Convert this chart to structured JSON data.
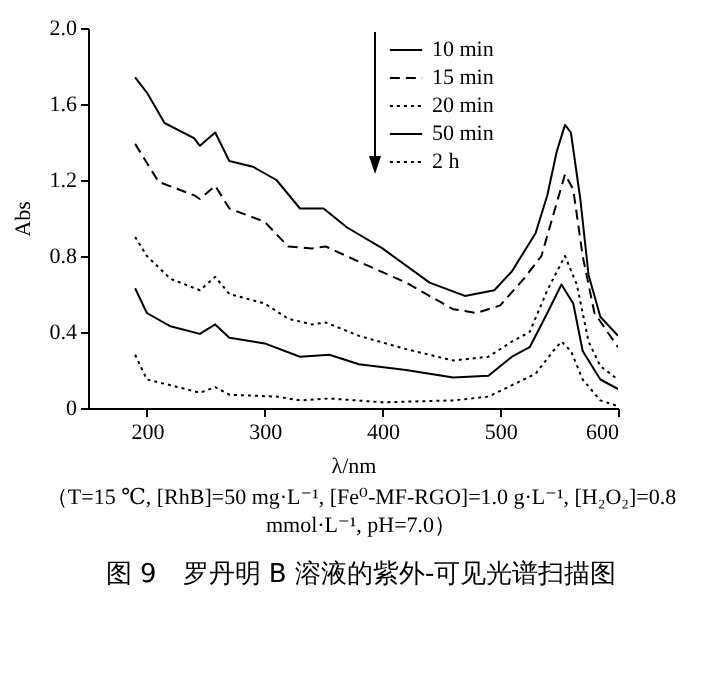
{
  "chart_data": {
    "type": "line",
    "title": "图 9　罗丹明 B 溶液的紫外-可见光谱扫描图",
    "xlabel": "λ/nm",
    "ylabel": "Abs",
    "annotations": [
      "（T=15 ℃, [RhB]=50 mg·L⁻¹, [Fe⁰-MF-RGO]=1.0 g·L⁻¹, [H₂O₂]=0.8 mmol·L⁻¹, pH=7.0）"
    ],
    "xlim": [
      150,
      600
    ],
    "xticks": [
      200,
      300,
      400,
      500,
      600
    ],
    "ylim": [
      0,
      2.0
    ],
    "yticks": [
      {
        "value": 0,
        "label": "0"
      },
      0.4,
      0.8,
      1.2,
      1.6,
      {
        "value": 2.0,
        "label": "2.0"
      }
    ],
    "grid": false,
    "legend": "top right",
    "series": [
      {
        "name": "10 min",
        "color": "#000000",
        "line_style": "solid",
        "x": [
          190,
          200,
          215,
          240,
          245,
          258,
          270,
          290,
          310,
          330,
          350,
          370,
          400,
          440,
          470,
          495,
          510,
          520,
          530,
          540,
          548,
          555,
          560,
          568,
          575,
          585,
          600
        ],
        "values": [
          1.74,
          1.66,
          1.5,
          1.42,
          1.38,
          1.45,
          1.3,
          1.27,
          1.2,
          1.05,
          1.05,
          0.95,
          0.84,
          0.66,
          0.59,
          0.62,
          0.72,
          0.82,
          0.92,
          1.12,
          1.35,
          1.49,
          1.45,
          1.1,
          0.7,
          0.48,
          0.38
        ]
      },
      {
        "name": "15 min",
        "color": "#000000",
        "line_style": "dashed",
        "x": [
          190,
          210,
          240,
          245,
          258,
          270,
          300,
          320,
          340,
          352,
          380,
          420,
          460,
          480,
          500,
          520,
          535,
          548,
          555,
          562,
          570,
          580,
          600
        ],
        "values": [
          1.39,
          1.19,
          1.12,
          1.1,
          1.17,
          1.05,
          0.98,
          0.85,
          0.84,
          0.85,
          0.77,
          0.66,
          0.52,
          0.5,
          0.54,
          0.68,
          0.8,
          1.08,
          1.23,
          1.15,
          0.8,
          0.5,
          0.32
        ]
      },
      {
        "name": "20 min",
        "color": "#000000",
        "line_style": "dotted",
        "x": [
          190,
          200,
          220,
          245,
          258,
          270,
          300,
          320,
          340,
          352,
          380,
          420,
          460,
          490,
          510,
          525,
          540,
          555,
          565,
          575,
          585,
          600
        ],
        "values": [
          0.9,
          0.8,
          0.68,
          0.62,
          0.69,
          0.6,
          0.55,
          0.47,
          0.44,
          0.45,
          0.38,
          0.31,
          0.25,
          0.27,
          0.35,
          0.4,
          0.62,
          0.8,
          0.65,
          0.35,
          0.22,
          0.15
        ]
      },
      {
        "name": "50 min",
        "color": "#000000",
        "line_style": "solid",
        "x": [
          190,
          200,
          220,
          245,
          258,
          270,
          300,
          330,
          355,
          380,
          420,
          460,
          490,
          510,
          525,
          540,
          552,
          562,
          570,
          585,
          600
        ],
        "values": [
          0.63,
          0.5,
          0.43,
          0.39,
          0.44,
          0.37,
          0.34,
          0.27,
          0.28,
          0.23,
          0.2,
          0.16,
          0.17,
          0.27,
          0.32,
          0.5,
          0.65,
          0.55,
          0.3,
          0.15,
          0.1
        ]
      },
      {
        "name": "2 h",
        "color": "#000000",
        "line_style": "dotted",
        "x": [
          190,
          200,
          220,
          245,
          258,
          270,
          310,
          330,
          355,
          400,
          460,
          490,
          510,
          530,
          545,
          552,
          560,
          570,
          585,
          600
        ],
        "values": [
          0.28,
          0.15,
          0.12,
          0.08,
          0.11,
          0.07,
          0.06,
          0.04,
          0.05,
          0.03,
          0.04,
          0.06,
          0.12,
          0.18,
          0.3,
          0.35,
          0.3,
          0.15,
          0.04,
          0.01
        ]
      }
    ]
  }
}
